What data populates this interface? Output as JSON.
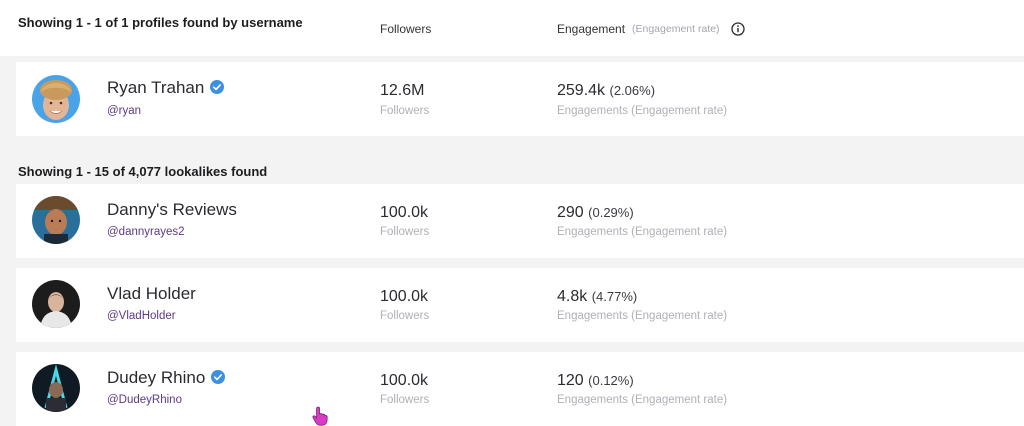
{
  "header": {
    "title": "Showing 1 - 1 of 1 profiles found by username",
    "followers_col": "Followers",
    "engagement_col": "Engagement",
    "engagement_sub": "(Engagement rate)",
    "info_icon": "info-circle-icon"
  },
  "search_result": {
    "name": "Ryan Trahan",
    "verified": true,
    "handle": "@ryan",
    "followers": "12.6M",
    "followers_label": "Followers",
    "engagements": "259.4k",
    "rate": "(2.06%)",
    "engagement_label": "Engagements (Engagement rate)"
  },
  "lookalikes": {
    "title": "Showing 1 - 15 of 4,077 lookalikes found",
    "items": [
      {
        "name": "Danny's Reviews",
        "verified": false,
        "handle": "@dannyrayes2",
        "followers": "100.0k",
        "followers_label": "Followers",
        "engagements": "290",
        "rate": "(0.29%)",
        "engagement_label": "Engagements (Engagement rate)"
      },
      {
        "name": "Vlad Holder",
        "verified": false,
        "handle": "@VladHolder",
        "followers": "100.0k",
        "followers_label": "Followers",
        "engagements": "4.8k",
        "rate": "(4.77%)",
        "engagement_label": "Engagements (Engagement rate)"
      },
      {
        "name": "Dudey Rhino",
        "verified": true,
        "handle": "@DudeyRhino",
        "followers": "100.0k",
        "followers_label": "Followers",
        "engagements": "120",
        "rate": "(0.12%)",
        "engagement_label": "Engagements (Engagement rate)"
      }
    ]
  },
  "colors": {
    "verified_badge": "#3d8fe0",
    "handle": "#5b3a87",
    "cursor": "#d83cc7"
  }
}
